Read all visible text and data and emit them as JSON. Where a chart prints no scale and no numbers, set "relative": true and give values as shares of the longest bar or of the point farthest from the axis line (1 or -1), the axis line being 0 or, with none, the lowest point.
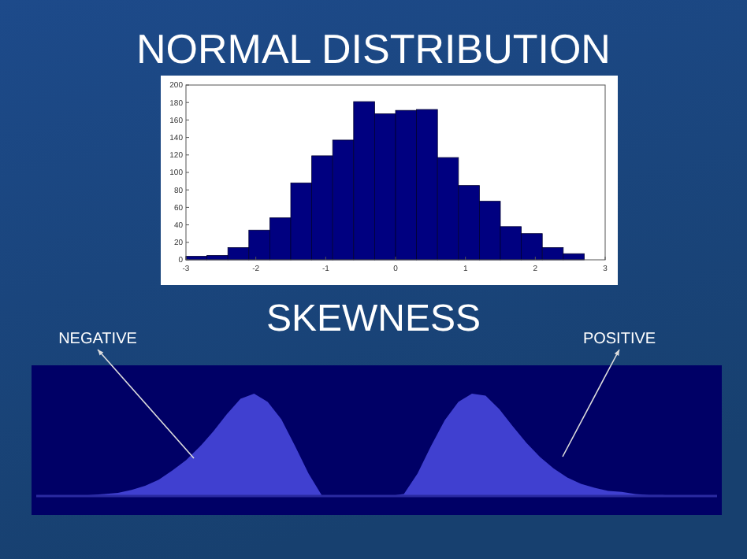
{
  "chart_data": [
    {
      "type": "histogram",
      "title": "NORMAL DISTRIBUTION",
      "bins": [
        -3,
        -2.7,
        -2.4,
        -2.1,
        -1.8,
        -1.5,
        -1.2,
        -0.9,
        -0.6,
        -0.3,
        0,
        0.3,
        0.6,
        0.9,
        1.2,
        1.5,
        1.8,
        2.1,
        2.4,
        2.7
      ],
      "values": [
        4,
        5,
        14,
        34,
        48,
        88,
        119,
        137,
        181,
        167,
        171,
        172,
        117,
        85,
        67,
        38,
        30,
        14,
        7
      ],
      "color": "#000080",
      "xlim": [
        -3,
        3
      ],
      "xticks": [
        -3,
        -2,
        -1,
        0,
        1,
        2,
        3
      ],
      "ylim": [
        0,
        200
      ],
      "yticks": [
        0,
        20,
        40,
        60,
        80,
        100,
        120,
        140,
        160,
        180,
        200
      ],
      "grid": false
    },
    {
      "type": "area",
      "title": "SKEWNESS",
      "relative": true,
      "categories": [
        null,
        null,
        null,
        null,
        null,
        null,
        null,
        null,
        null,
        null,
        null,
        null,
        null,
        null,
        null,
        null,
        null,
        null,
        null,
        null,
        null,
        null,
        null,
        null,
        null,
        null,
        null,
        null,
        null,
        null,
        null,
        null,
        null,
        null,
        null,
        null,
        null,
        null,
        null,
        null,
        null,
        null,
        null,
        null,
        null,
        null,
        null,
        null,
        null,
        null,
        null
      ],
      "values": [
        0,
        0,
        0,
        0,
        0.01,
        0.02,
        0.03,
        0.06,
        0.1,
        0.16,
        0.25,
        0.35,
        0.48,
        0.63,
        0.8,
        0.95,
        1,
        0.92,
        0.75,
        0.49,
        0.22,
        0,
        0,
        0,
        0,
        0,
        0,
        0.02,
        0.22,
        0.49,
        0.74,
        0.92,
        1,
        0.98,
        0.85,
        0.68,
        0.52,
        0.38,
        0.27,
        0.18,
        0.12,
        0.08,
        0.05,
        0.04,
        0.02,
        0.01,
        0.01,
        0,
        0,
        0,
        0
      ],
      "color": "#4040d0",
      "annotations": [
        "NEGATIVE",
        "POSITIVE"
      ]
    }
  ]
}
